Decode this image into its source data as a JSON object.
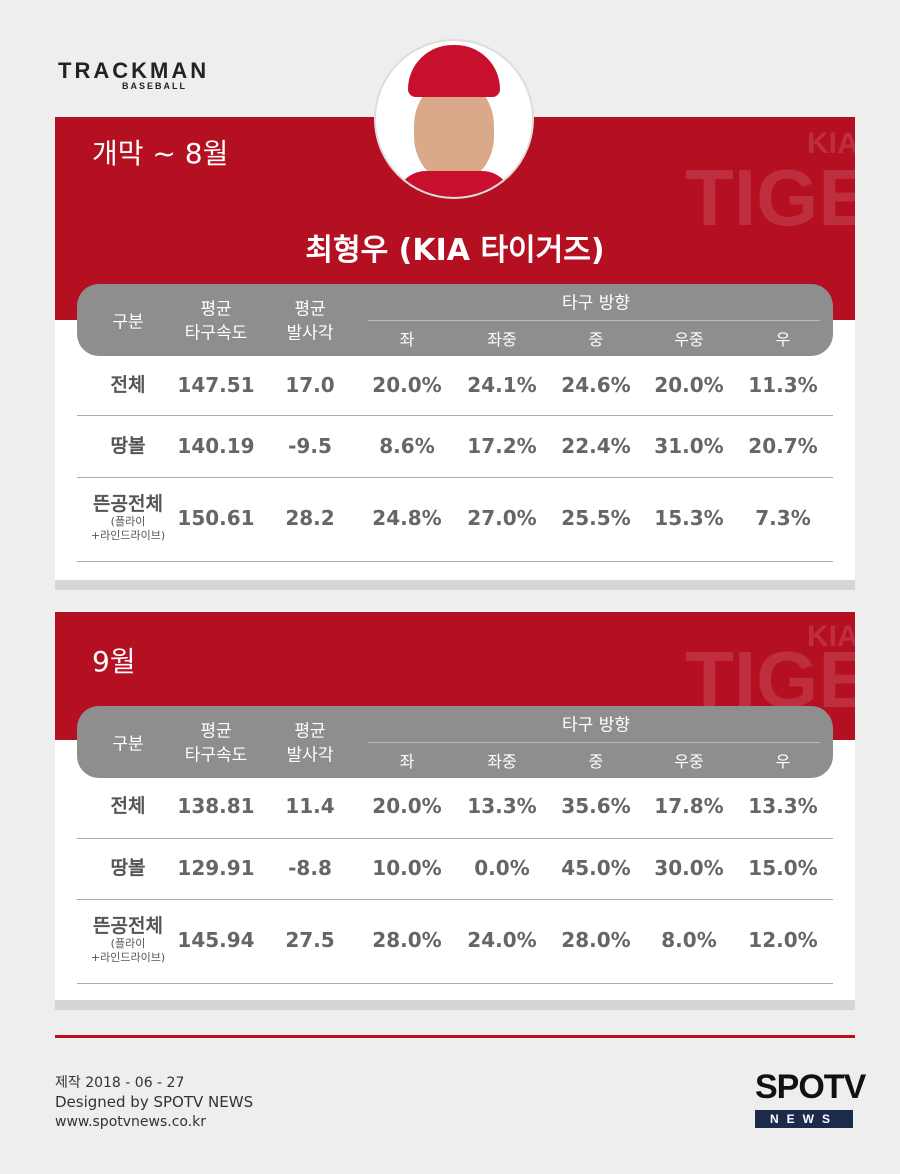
{
  "header": {
    "brand": "TRACKMAN",
    "brand_sub": "BASEBALL"
  },
  "watermark": {
    "kia": "KIA",
    "tigers": "TIGERS"
  },
  "player_name": "최형우 (KIA 타이거즈)",
  "columns": [
    [
      "구분"
    ],
    [
      "평균",
      "타구속도"
    ],
    [
      "평균",
      "발사각"
    ]
  ],
  "direction_label": "타구 방향",
  "directions": [
    "좌",
    "좌중",
    "중",
    "우중",
    "우"
  ],
  "sections": [
    {
      "period": "개막 ~ 8월",
      "rows": [
        {
          "label": [
            "전체"
          ],
          "cells": [
            "147.51",
            "17.0",
            "20.0%",
            "24.1%",
            "24.6%",
            "20.0%",
            "11.3%"
          ]
        },
        {
          "label": [
            "땅볼"
          ],
          "cells": [
            "140.19",
            "-9.5",
            "8.6%",
            "17.2%",
            "22.4%",
            "31.0%",
            "20.7%"
          ]
        },
        {
          "label": [
            "뜬공전체",
            "(플라이",
            "+라인드라이브)"
          ],
          "cells": [
            "150.61",
            "28.2",
            "24.8%",
            "27.0%",
            "25.5%",
            "15.3%",
            "7.3%"
          ]
        }
      ]
    },
    {
      "period": "9월",
      "rows": [
        {
          "label": [
            "전체"
          ],
          "cells": [
            "138.81",
            "11.4",
            "20.0%",
            "13.3%",
            "35.6%",
            "17.8%",
            "13.3%"
          ]
        },
        {
          "label": [
            "땅볼"
          ],
          "cells": [
            "129.91",
            "-8.8",
            "10.0%",
            "0.0%",
            "45.0%",
            "30.0%",
            "15.0%"
          ]
        },
        {
          "label": [
            "뜬공전체",
            "(플라이",
            "+라인드라이브)"
          ],
          "cells": [
            "145.94",
            "27.5",
            "28.0%",
            "24.0%",
            "28.0%",
            "8.0%",
            "12.0%"
          ]
        }
      ]
    }
  ],
  "footer": {
    "made": "제작 2018 - 06 - 27",
    "designed": "Designed by SPOTV NEWS",
    "url": "www.spotvnews.co.kr",
    "logo": "SPOTV",
    "logo_sub": "NEWS"
  }
}
